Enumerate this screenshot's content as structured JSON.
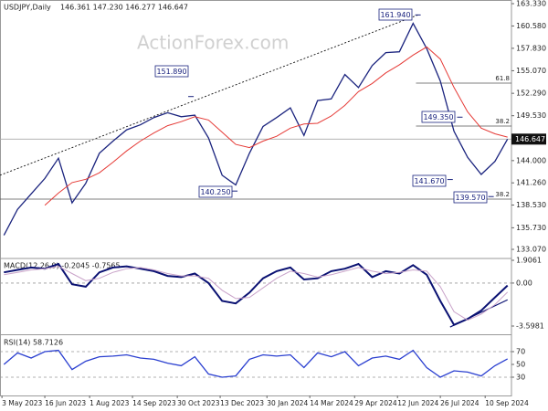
{
  "watermark": "ActionForex.com",
  "chart_data": [
    {
      "type": "line",
      "title": "USDJPY,Daily",
      "subtitle": "146.361 147.230 146.277 146.647",
      "xlim": [
        "2023-05-01",
        "2024-10-07"
      ],
      "ylim": [
        132.06,
        163.78
      ],
      "x": [
        "2023-05-05",
        "2023-05-19",
        "2023-06-02",
        "2023-06-16",
        "2023-06-30",
        "2023-07-14",
        "2023-07-28",
        "2023-08-11",
        "2023-08-25",
        "2023-09-08",
        "2023-09-22",
        "2023-10-06",
        "2023-10-20",
        "2023-11-03",
        "2023-11-17",
        "2023-12-01",
        "2023-12-15",
        "2023-12-29",
        "2024-01-12",
        "2024-01-26",
        "2024-02-09",
        "2024-02-23",
        "2024-03-08",
        "2024-03-22",
        "2024-04-05",
        "2024-04-19",
        "2024-05-03",
        "2024-05-17",
        "2024-05-31",
        "2024-06-14",
        "2024-06-28",
        "2024-07-12",
        "2024-07-26",
        "2024-08-09",
        "2024-08-23",
        "2024-09-06",
        "2024-09-20",
        "2024-10-03"
      ],
      "series": [
        {
          "color": "#1a237e",
          "values": [
            134.8,
            138.0,
            139.9,
            141.8,
            144.3,
            138.8,
            141.2,
            144.9,
            146.4,
            147.8,
            148.4,
            149.3,
            149.9,
            149.4,
            149.6,
            146.8,
            142.2,
            141.0,
            144.9,
            148.2,
            149.3,
            150.5,
            147.1,
            151.4,
            151.6,
            154.6,
            153.0,
            155.7,
            157.3,
            157.4,
            160.9,
            157.8,
            153.8,
            147.6,
            144.4,
            142.3,
            143.9,
            146.647
          ]
        },
        {
          "color": "#e53935",
          "values": [
            null,
            null,
            null,
            138.5,
            140.0,
            141.3,
            141.7,
            142.5,
            143.8,
            145.2,
            146.4,
            147.4,
            148.3,
            148.8,
            149.4,
            149.0,
            147.5,
            146.0,
            145.6,
            146.4,
            147.0,
            148.0,
            148.5,
            148.6,
            149.5,
            150.8,
            152.5,
            153.5,
            154.8,
            155.8,
            157.0,
            158.0,
            156.5,
            153.0,
            150.0,
            148.0,
            147.3,
            146.9
          ]
        }
      ],
      "yticks": [
        {
          "value": 163.33,
          "label": "163.330"
        },
        {
          "value": 160.58,
          "label": "160.580"
        },
        {
          "value": 157.83,
          "label": "157.830"
        },
        {
          "value": 155.07,
          "label": "155.070"
        },
        {
          "value": 152.29,
          "label": "152.290"
        },
        {
          "value": 149.53,
          "label": "149.530"
        },
        {
          "value": 144,
          "label": "144.000"
        },
        {
          "value": 141.26,
          "label": "141.260"
        },
        {
          "value": 138.53,
          "label": "138.530"
        },
        {
          "value": 135.73,
          "label": "135.730"
        },
        {
          "value": 133.07,
          "label": "133.070"
        }
      ],
      "last_price_line": true,
      "levels": [
        {
          "value": 153.54,
          "label": "61.8",
          "from": "2024-07-01"
        },
        {
          "value": 148.26,
          "label": "38.2",
          "from": "2024-07-01"
        },
        {
          "value": 139.26,
          "label": "38.2"
        }
      ],
      "trendlines": [
        {
          "x": [
            "2023-05-01",
            "2024-07-03"
          ],
          "values": [
            142.2,
            161.94
          ]
        }
      ],
      "annotations": [
        {
          "x": "2024-07-03",
          "value": 161.94,
          "label": "161.940"
        },
        {
          "x": "2023-11-13",
          "value": 151.89,
          "label": "151.890"
        },
        {
          "x": "2023-12-28",
          "value": 140.25,
          "label": "140.250"
        },
        {
          "x": "2024-08-15",
          "value": 149.35,
          "label": "149.350"
        },
        {
          "x": "2024-08-05",
          "value": 141.67,
          "label": "141.670"
        },
        {
          "x": "2024-09-16",
          "value": 139.57,
          "label": "139.570"
        }
      ]
    },
    {
      "type": "line",
      "title": "MACD(12,26,9) -0.2045 -0.7565",
      "xlim": [
        "2023-05-01",
        "2024-10-07"
      ],
      "ylim": [
        -4.287,
        2.059
      ],
      "x": [
        "2023-05-05",
        "2023-05-19",
        "2023-06-02",
        "2023-06-16",
        "2023-06-30",
        "2023-07-14",
        "2023-07-28",
        "2023-08-11",
        "2023-08-25",
        "2023-09-08",
        "2023-09-22",
        "2023-10-06",
        "2023-10-20",
        "2023-11-03",
        "2023-11-17",
        "2023-12-01",
        "2023-12-15",
        "2023-12-29",
        "2024-01-12",
        "2024-01-26",
        "2024-02-09",
        "2024-02-23",
        "2024-03-08",
        "2024-03-22",
        "2024-04-05",
        "2024-04-19",
        "2024-05-03",
        "2024-05-17",
        "2024-05-31",
        "2024-06-14",
        "2024-06-28",
        "2024-07-12",
        "2024-07-26",
        "2024-08-09",
        "2024-08-23",
        "2024-09-06",
        "2024-09-20",
        "2024-10-03"
      ],
      "series": [
        {
          "color": "#0a1172",
          "values": [
            0.9,
            1.1,
            1.3,
            1.2,
            1.6,
            -0.1,
            -0.3,
            0.9,
            1.3,
            1.4,
            1.2,
            1.0,
            0.6,
            0.5,
            0.8,
            0.0,
            -1.5,
            -1.7,
            -0.8,
            0.4,
            1.0,
            1.3,
            0.3,
            0.4,
            1.0,
            1.2,
            1.6,
            0.5,
            1.0,
            0.8,
            1.5,
            0.7,
            -1.5,
            -3.5,
            -3.0,
            -2.3,
            -1.2,
            -0.2045
          ]
        },
        {
          "color": "#c9a3c9",
          "values": [
            0.7,
            0.9,
            1.1,
            1.2,
            1.4,
            0.8,
            0.2,
            0.4,
            0.9,
            1.2,
            1.3,
            1.1,
            0.8,
            0.6,
            0.6,
            0.4,
            -0.6,
            -1.3,
            -1.2,
            -0.4,
            0.4,
            1.0,
            0.8,
            0.5,
            0.7,
            1.0,
            1.3,
            1.0,
            0.8,
            0.9,
            1.1,
            1.0,
            -0.3,
            -2.4,
            -3.1,
            -2.6,
            -1.8,
            -0.7565
          ]
        }
      ],
      "yticks": [
        1.9061,
        {
          "value": 0,
          "label": "0.00"
        },
        -3.5981
      ],
      "levels": [
        0
      ],
      "trendlines": [
        {
          "x": [
            "2024-08-05",
            "2024-10-03"
          ],
          "values": [
            -3.68,
            -1.4
          ]
        }
      ]
    },
    {
      "type": "line",
      "title": "RSI(14) 58.7126",
      "xlim": [
        "2023-05-01",
        "2024-10-07"
      ],
      "ylim": [
        1.4,
        95.7
      ],
      "x": [
        "2023-05-05",
        "2023-05-19",
        "2023-06-02",
        "2023-06-16",
        "2023-06-30",
        "2023-07-14",
        "2023-07-28",
        "2023-08-11",
        "2023-08-25",
        "2023-09-08",
        "2023-09-22",
        "2023-10-06",
        "2023-10-20",
        "2023-11-03",
        "2023-11-17",
        "2023-12-01",
        "2023-12-15",
        "2023-12-29",
        "2024-01-12",
        "2024-01-26",
        "2024-02-09",
        "2024-02-23",
        "2024-03-08",
        "2024-03-22",
        "2024-04-05",
        "2024-04-19",
        "2024-05-03",
        "2024-05-17",
        "2024-05-31",
        "2024-06-14",
        "2024-06-28",
        "2024-07-12",
        "2024-07-26",
        "2024-08-09",
        "2024-08-23",
        "2024-09-06",
        "2024-09-20",
        "2024-10-03"
      ],
      "series": [
        {
          "color": "#2a3fd0",
          "values": [
            50,
            68,
            60,
            70,
            72,
            42,
            55,
            62,
            63,
            65,
            60,
            58,
            52,
            48,
            62,
            35,
            30,
            32,
            58,
            65,
            63,
            65,
            45,
            68,
            62,
            70,
            48,
            60,
            63,
            58,
            72,
            45,
            30,
            40,
            38,
            32,
            48,
            58.7126
          ]
        }
      ],
      "yticks": [
        70,
        50,
        30
      ],
      "levels": [
        70,
        30
      ],
      "xticks": [
        {
          "value": "2023-05-03",
          "label": "3 May 2023"
        },
        {
          "value": "2023-06-16",
          "label": "16 Jun 2023"
        },
        {
          "value": "2023-08-01",
          "label": "1 Aug 2023"
        },
        {
          "value": "2023-09-14",
          "label": "14 Sep 2023"
        },
        {
          "value": "2023-10-30",
          "label": "30 Oct 2023"
        },
        {
          "value": "2023-12-13",
          "label": "13 Dec 2023"
        },
        {
          "value": "2024-01-30",
          "label": "30 Jan 2024"
        },
        {
          "value": "2024-03-14",
          "label": "14 Mar 2024"
        },
        {
          "value": "2024-04-29",
          "label": "29 Apr 2024"
        },
        {
          "value": "2024-06-12",
          "label": "12 Jun 2024"
        },
        {
          "value": "2024-07-26",
          "label": "26 Jul 2024"
        },
        {
          "value": "2024-09-10",
          "label": "10 Sep 2024"
        }
      ]
    }
  ]
}
